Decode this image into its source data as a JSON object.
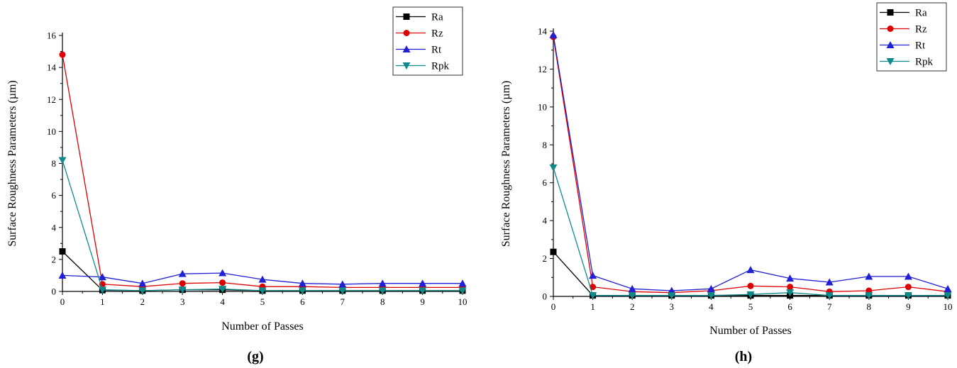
{
  "chart_data": [
    {
      "panel_label": "(g)",
      "type": "line",
      "xlabel": "Number of Passes",
      "ylabel": "Surface Roughness Parameters (µm)",
      "xlim": [
        0,
        10
      ],
      "ylim": [
        0,
        16
      ],
      "x_ticks": [
        0,
        1,
        2,
        3,
        4,
        5,
        6,
        7,
        8,
        9,
        10
      ],
      "y_ticks": [
        0,
        2,
        4,
        6,
        8,
        10,
        12,
        14,
        16
      ],
      "grid": false,
      "legend_position": "top-right",
      "x": [
        0,
        1,
        2,
        3,
        4,
        5,
        6,
        7,
        8,
        9,
        10
      ],
      "series": [
        {
          "name": "Ra",
          "marker": "square",
          "color": "#000000",
          "values": [
            2.5,
            0.08,
            0.05,
            0.1,
            0.1,
            0.05,
            0.05,
            0.05,
            0.05,
            0.05,
            0.05
          ]
        },
        {
          "name": "Rz",
          "marker": "circle",
          "color": "#dd0000",
          "values": [
            14.8,
            0.45,
            0.3,
            0.5,
            0.55,
            0.3,
            0.3,
            0.25,
            0.25,
            0.25,
            0.25
          ]
        },
        {
          "name": "Rt",
          "marker": "triangle-up",
          "color": "#1f1fd6",
          "values": [
            1.0,
            0.9,
            0.5,
            1.1,
            1.15,
            0.75,
            0.5,
            0.45,
            0.5,
            0.5,
            0.5
          ]
        },
        {
          "name": "Rpk",
          "marker": "triangle-down",
          "color": "#0f8a8a",
          "values": [
            8.2,
            0.1,
            0.05,
            0.1,
            0.15,
            0.05,
            0.05,
            0.05,
            0.05,
            0.05,
            0.05
          ]
        }
      ]
    },
    {
      "panel_label": "(h)",
      "type": "line",
      "xlabel": "Number of Passes",
      "ylabel": "Surface Roughness Parameters (µm)",
      "xlim": [
        0,
        10
      ],
      "ylim": [
        0,
        14
      ],
      "x_ticks": [
        0,
        1,
        2,
        3,
        4,
        5,
        6,
        7,
        8,
        9,
        10
      ],
      "y_ticks": [
        0,
        2,
        4,
        6,
        8,
        10,
        12,
        14
      ],
      "grid": false,
      "legend_position": "top-right",
      "x": [
        0,
        1,
        2,
        3,
        4,
        5,
        6,
        7,
        8,
        9,
        10
      ],
      "series": [
        {
          "name": "Ra",
          "marker": "square",
          "color": "#000000",
          "values": [
            2.35,
            0.05,
            0.05,
            0.05,
            0.05,
            0.05,
            0.05,
            0.05,
            0.05,
            0.05,
            0.05
          ]
        },
        {
          "name": "Rz",
          "marker": "circle",
          "color": "#dd0000",
          "values": [
            13.7,
            0.5,
            0.25,
            0.2,
            0.3,
            0.55,
            0.5,
            0.25,
            0.3,
            0.5,
            0.25
          ]
        },
        {
          "name": "Rt",
          "marker": "triangle-up",
          "color": "#1f1fd6",
          "values": [
            13.8,
            1.1,
            0.4,
            0.3,
            0.4,
            1.4,
            0.95,
            0.75,
            1.05,
            1.05,
            0.4
          ]
        },
        {
          "name": "Rpk",
          "marker": "triangle-down",
          "color": "#0f8a8a",
          "values": [
            6.8,
            0.05,
            0.05,
            0.05,
            0.05,
            0.1,
            0.2,
            0.05,
            0.05,
            0.05,
            0.05
          ]
        }
      ]
    }
  ]
}
